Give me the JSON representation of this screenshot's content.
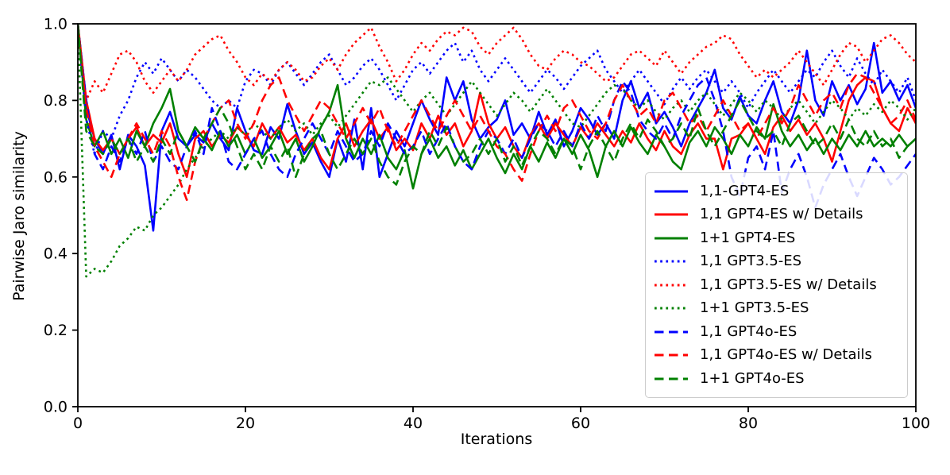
{
  "figure": {
    "background": "#ffffff"
  },
  "chart_data": {
    "type": "line",
    "title": "",
    "xlabel": "Iterations",
    "ylabel": "Pairwise Jaro similarity",
    "xlim": [
      0,
      100
    ],
    "ylim": [
      0.0,
      1.0
    ],
    "grid": false,
    "legend_position": "lower right inside plot",
    "xtick_values": [
      0,
      20,
      40,
      60,
      80,
      100
    ],
    "xtick_labels": [
      "0",
      "20",
      "40",
      "60",
      "80",
      "100"
    ],
    "ytick_values": [
      0.0,
      0.2,
      0.4,
      0.6,
      0.8,
      1.0
    ],
    "ytick_labels": [
      "0.0",
      "0.2",
      "0.4",
      "0.6",
      "0.8",
      "1.0"
    ],
    "x_step": 1,
    "series": [
      {
        "label": "1,1-GPT4-ES",
        "color": "#0000ff",
        "style": "solid",
        "values": [
          1.0,
          0.78,
          0.7,
          0.66,
          0.71,
          0.62,
          0.71,
          0.68,
          0.63,
          0.46,
          0.72,
          0.77,
          0.7,
          0.68,
          0.71,
          0.69,
          0.74,
          0.7,
          0.67,
          0.78,
          0.72,
          0.67,
          0.66,
          0.73,
          0.7,
          0.79,
          0.72,
          0.66,
          0.69,
          0.64,
          0.6,
          0.7,
          0.64,
          0.75,
          0.62,
          0.78,
          0.6,
          0.66,
          0.72,
          0.68,
          0.74,
          0.8,
          0.75,
          0.71,
          0.86,
          0.8,
          0.85,
          0.75,
          0.7,
          0.73,
          0.75,
          0.8,
          0.71,
          0.74,
          0.7,
          0.77,
          0.71,
          0.75,
          0.68,
          0.72,
          0.78,
          0.75,
          0.71,
          0.74,
          0.7,
          0.8,
          0.85,
          0.78,
          0.82,
          0.74,
          0.77,
          0.73,
          0.68,
          0.74,
          0.78,
          0.82,
          0.88,
          0.78,
          0.75,
          0.81,
          0.76,
          0.74,
          0.8,
          0.85,
          0.77,
          0.74,
          0.8,
          0.93,
          0.8,
          0.76,
          0.85,
          0.8,
          0.84,
          0.79,
          0.83,
          0.95,
          0.82,
          0.85,
          0.8,
          0.84,
          0.78
        ]
      },
      {
        "label": "1,1 GPT4-ES w/ Details",
        "color": "#ff0000",
        "style": "solid",
        "values": [
          1.0,
          0.8,
          0.7,
          0.67,
          0.7,
          0.66,
          0.7,
          0.73,
          0.68,
          0.71,
          0.69,
          0.74,
          0.66,
          0.6,
          0.7,
          0.72,
          0.68,
          0.71,
          0.69,
          0.73,
          0.71,
          0.68,
          0.74,
          0.7,
          0.73,
          0.69,
          0.71,
          0.67,
          0.7,
          0.65,
          0.62,
          0.7,
          0.74,
          0.68,
          0.72,
          0.75,
          0.7,
          0.73,
          0.67,
          0.7,
          0.67,
          0.74,
          0.7,
          0.76,
          0.71,
          0.74,
          0.68,
          0.72,
          0.82,
          0.74,
          0.7,
          0.73,
          0.68,
          0.65,
          0.71,
          0.74,
          0.7,
          0.74,
          0.71,
          0.68,
          0.73,
          0.7,
          0.74,
          0.71,
          0.68,
          0.72,
          0.69,
          0.74,
          0.7,
          0.67,
          0.72,
          0.68,
          0.66,
          0.71,
          0.74,
          0.7,
          0.7,
          0.62,
          0.7,
          0.71,
          0.74,
          0.7,
          0.66,
          0.73,
          0.76,
          0.72,
          0.75,
          0.71,
          0.74,
          0.7,
          0.64,
          0.72,
          0.8,
          0.84,
          0.86,
          0.85,
          0.78,
          0.74,
          0.72,
          0.78,
          0.74
        ]
      },
      {
        "label": "1+1 GPT4-ES",
        "color": "#008000",
        "style": "solid",
        "values": [
          1.0,
          0.75,
          0.68,
          0.72,
          0.66,
          0.7,
          0.65,
          0.72,
          0.68,
          0.74,
          0.78,
          0.83,
          0.72,
          0.68,
          0.73,
          0.7,
          0.67,
          0.72,
          0.68,
          0.71,
          0.66,
          0.7,
          0.65,
          0.68,
          0.72,
          0.66,
          0.7,
          0.64,
          0.68,
          0.73,
          0.77,
          0.84,
          0.7,
          0.65,
          0.7,
          0.66,
          0.71,
          0.65,
          0.62,
          0.67,
          0.57,
          0.66,
          0.7,
          0.65,
          0.68,
          0.63,
          0.67,
          0.62,
          0.66,
          0.7,
          0.65,
          0.61,
          0.66,
          0.62,
          0.68,
          0.64,
          0.69,
          0.65,
          0.7,
          0.66,
          0.71,
          0.67,
          0.6,
          0.68,
          0.72,
          0.68,
          0.73,
          0.69,
          0.66,
          0.71,
          0.68,
          0.64,
          0.62,
          0.69,
          0.72,
          0.68,
          0.73,
          0.7,
          0.66,
          0.71,
          0.68,
          0.73,
          0.7,
          0.79,
          0.72,
          0.68,
          0.71,
          0.67,
          0.7,
          0.66,
          0.7,
          0.67,
          0.71,
          0.68,
          0.72,
          0.68,
          0.7,
          0.68,
          0.71,
          0.68,
          0.7
        ]
      },
      {
        "label": "1,1 GPT3.5-ES",
        "color": "#0000ff",
        "style": "dotted",
        "values": [
          1.0,
          0.75,
          0.66,
          0.72,
          0.7,
          0.76,
          0.8,
          0.86,
          0.9,
          0.87,
          0.91,
          0.88,
          0.85,
          0.88,
          0.86,
          0.83,
          0.8,
          0.78,
          0.8,
          0.78,
          0.85,
          0.88,
          0.87,
          0.84,
          0.88,
          0.9,
          0.87,
          0.84,
          0.87,
          0.9,
          0.92,
          0.88,
          0.84,
          0.86,
          0.89,
          0.91,
          0.88,
          0.84,
          0.8,
          0.84,
          0.88,
          0.9,
          0.87,
          0.9,
          0.93,
          0.95,
          0.9,
          0.93,
          0.88,
          0.85,
          0.88,
          0.91,
          0.88,
          0.85,
          0.82,
          0.85,
          0.88,
          0.86,
          0.83,
          0.86,
          0.89,
          0.91,
          0.93,
          0.88,
          0.85,
          0.82,
          0.85,
          0.88,
          0.85,
          0.82,
          0.79,
          0.83,
          0.86,
          0.83,
          0.86,
          0.88,
          0.85,
          0.82,
          0.85,
          0.82,
          0.78,
          0.82,
          0.85,
          0.88,
          0.85,
          0.82,
          0.85,
          0.88,
          0.86,
          0.9,
          0.93,
          0.89,
          0.86,
          0.91,
          0.87,
          0.84,
          0.88,
          0.85,
          0.82,
          0.86,
          0.8
        ]
      },
      {
        "label": "1,1 GPT3.5-ES w/ Details",
        "color": "#ff0000",
        "style": "dotted",
        "values": [
          1.0,
          0.8,
          0.85,
          0.82,
          0.87,
          0.92,
          0.93,
          0.9,
          0.85,
          0.82,
          0.85,
          0.88,
          0.85,
          0.88,
          0.92,
          0.94,
          0.96,
          0.97,
          0.93,
          0.9,
          0.86,
          0.84,
          0.87,
          0.85,
          0.88,
          0.9,
          0.88,
          0.85,
          0.86,
          0.89,
          0.91,
          0.88,
          0.92,
          0.95,
          0.97,
          0.99,
          0.94,
          0.9,
          0.85,
          0.88,
          0.92,
          0.95,
          0.93,
          0.96,
          0.98,
          0.97,
          0.99,
          0.98,
          0.94,
          0.92,
          0.95,
          0.97,
          0.99,
          0.96,
          0.92,
          0.89,
          0.88,
          0.91,
          0.93,
          0.92,
          0.9,
          0.89,
          0.87,
          0.85,
          0.86,
          0.89,
          0.92,
          0.93,
          0.91,
          0.89,
          0.93,
          0.9,
          0.87,
          0.9,
          0.92,
          0.94,
          0.95,
          0.97,
          0.96,
          0.92,
          0.89,
          0.86,
          0.88,
          0.86,
          0.88,
          0.9,
          0.93,
          0.9,
          0.87,
          0.84,
          0.88,
          0.92,
          0.95,
          0.94,
          0.9,
          0.93,
          0.96,
          0.97,
          0.95,
          0.92,
          0.9
        ]
      },
      {
        "label": "1+1 GPT3.5-ES",
        "color": "#008000",
        "style": "dotted",
        "values": [
          1.0,
          0.34,
          0.36,
          0.35,
          0.38,
          0.42,
          0.44,
          0.47,
          0.46,
          0.5,
          0.52,
          0.55,
          0.58,
          0.62,
          0.65,
          0.68,
          0.7,
          0.72,
          0.7,
          0.73,
          0.71,
          0.74,
          0.72,
          0.7,
          0.73,
          0.75,
          0.72,
          0.74,
          0.71,
          0.74,
          0.76,
          0.73,
          0.76,
          0.79,
          0.82,
          0.85,
          0.84,
          0.86,
          0.83,
          0.8,
          0.77,
          0.8,
          0.82,
          0.79,
          0.76,
          0.79,
          0.82,
          0.85,
          0.82,
          0.79,
          0.76,
          0.79,
          0.82,
          0.8,
          0.77,
          0.8,
          0.83,
          0.8,
          0.77,
          0.74,
          0.73,
          0.76,
          0.79,
          0.82,
          0.84,
          0.83,
          0.8,
          0.78,
          0.8,
          0.77,
          0.75,
          0.78,
          0.8,
          0.77,
          0.8,
          0.82,
          0.79,
          0.76,
          0.79,
          0.82,
          0.8,
          0.77,
          0.8,
          0.78,
          0.75,
          0.78,
          0.8,
          0.77,
          0.74,
          0.77,
          0.8,
          0.78,
          0.75,
          0.78,
          0.76,
          0.79,
          0.77,
          0.8,
          0.78,
          0.75,
          0.78
        ]
      },
      {
        "label": "1,1 GPT4o-ES",
        "color": "#0000ff",
        "style": "dashed",
        "values": [
          1.0,
          0.8,
          0.66,
          0.62,
          0.68,
          0.64,
          0.7,
          0.66,
          0.72,
          0.64,
          0.68,
          0.64,
          0.62,
          0.68,
          0.72,
          0.66,
          0.78,
          0.72,
          0.64,
          0.62,
          0.66,
          0.7,
          0.72,
          0.66,
          0.62,
          0.6,
          0.66,
          0.7,
          0.74,
          0.7,
          0.66,
          0.72,
          0.68,
          0.64,
          0.66,
          0.72,
          0.68,
          0.74,
          0.7,
          0.66,
          0.68,
          0.72,
          0.66,
          0.7,
          0.74,
          0.68,
          0.64,
          0.62,
          0.68,
          0.72,
          0.7,
          0.66,
          0.7,
          0.65,
          0.7,
          0.74,
          0.72,
          0.68,
          0.72,
          0.68,
          0.74,
          0.7,
          0.76,
          0.72,
          0.8,
          0.85,
          0.82,
          0.75,
          0.72,
          0.7,
          0.74,
          0.7,
          0.76,
          0.8,
          0.84,
          0.86,
          0.8,
          0.72,
          0.6,
          0.55,
          0.65,
          0.68,
          0.62,
          0.72,
          0.56,
          0.62,
          0.66,
          0.6,
          0.52,
          0.58,
          0.62,
          0.66,
          0.6,
          0.55,
          0.6,
          0.65,
          0.62,
          0.58,
          0.6,
          0.63,
          0.66
        ]
      },
      {
        "label": "1,1 GPT4o-ES w/ Details",
        "color": "#ff0000",
        "style": "dashed",
        "values": [
          1.0,
          0.78,
          0.68,
          0.64,
          0.6,
          0.66,
          0.7,
          0.74,
          0.7,
          0.66,
          0.72,
          0.68,
          0.6,
          0.54,
          0.64,
          0.7,
          0.74,
          0.78,
          0.8,
          0.74,
          0.7,
          0.74,
          0.8,
          0.84,
          0.86,
          0.8,
          0.76,
          0.72,
          0.76,
          0.8,
          0.78,
          0.74,
          0.7,
          0.74,
          0.78,
          0.74,
          0.78,
          0.72,
          0.68,
          0.72,
          0.76,
          0.8,
          0.76,
          0.72,
          0.76,
          0.8,
          0.76,
          0.72,
          0.76,
          0.72,
          0.68,
          0.66,
          0.62,
          0.59,
          0.66,
          0.72,
          0.76,
          0.72,
          0.78,
          0.8,
          0.76,
          0.72,
          0.7,
          0.74,
          0.8,
          0.84,
          0.8,
          0.76,
          0.78,
          0.74,
          0.8,
          0.82,
          0.78,
          0.74,
          0.76,
          0.72,
          0.76,
          0.8,
          0.76,
          0.72,
          0.74,
          0.7,
          0.74,
          0.78,
          0.74,
          0.78,
          0.84,
          0.8,
          0.76,
          0.8,
          0.82,
          0.78,
          0.84,
          0.87,
          0.86,
          0.82,
          0.78,
          0.74,
          0.76,
          0.8,
          0.75
        ]
      },
      {
        "label": "1+1 GPT4o-ES",
        "color": "#008000",
        "style": "dashed",
        "values": [
          1.0,
          0.72,
          0.68,
          0.66,
          0.7,
          0.66,
          0.7,
          0.64,
          0.68,
          0.64,
          0.7,
          0.66,
          0.72,
          0.68,
          0.64,
          0.7,
          0.74,
          0.78,
          0.74,
          0.68,
          0.62,
          0.66,
          0.62,
          0.68,
          0.64,
          0.68,
          0.6,
          0.66,
          0.7,
          0.72,
          0.66,
          0.62,
          0.66,
          0.7,
          0.66,
          0.7,
          0.64,
          0.6,
          0.58,
          0.64,
          0.68,
          0.66,
          0.72,
          0.68,
          0.73,
          0.68,
          0.64,
          0.66,
          0.7,
          0.66,
          0.7,
          0.64,
          0.68,
          0.63,
          0.68,
          0.72,
          0.7,
          0.66,
          0.7,
          0.68,
          0.62,
          0.68,
          0.72,
          0.68,
          0.64,
          0.7,
          0.74,
          0.7,
          0.75,
          0.72,
          0.68,
          0.7,
          0.74,
          0.7,
          0.78,
          0.72,
          0.68,
          0.72,
          0.76,
          0.8,
          0.76,
          0.72,
          0.7,
          0.72,
          0.68,
          0.74,
          0.76,
          0.72,
          0.68,
          0.7,
          0.74,
          0.7,
          0.75,
          0.7,
          0.68,
          0.72,
          0.68,
          0.7,
          0.65,
          0.68,
          0.7
        ]
      }
    ]
  }
}
